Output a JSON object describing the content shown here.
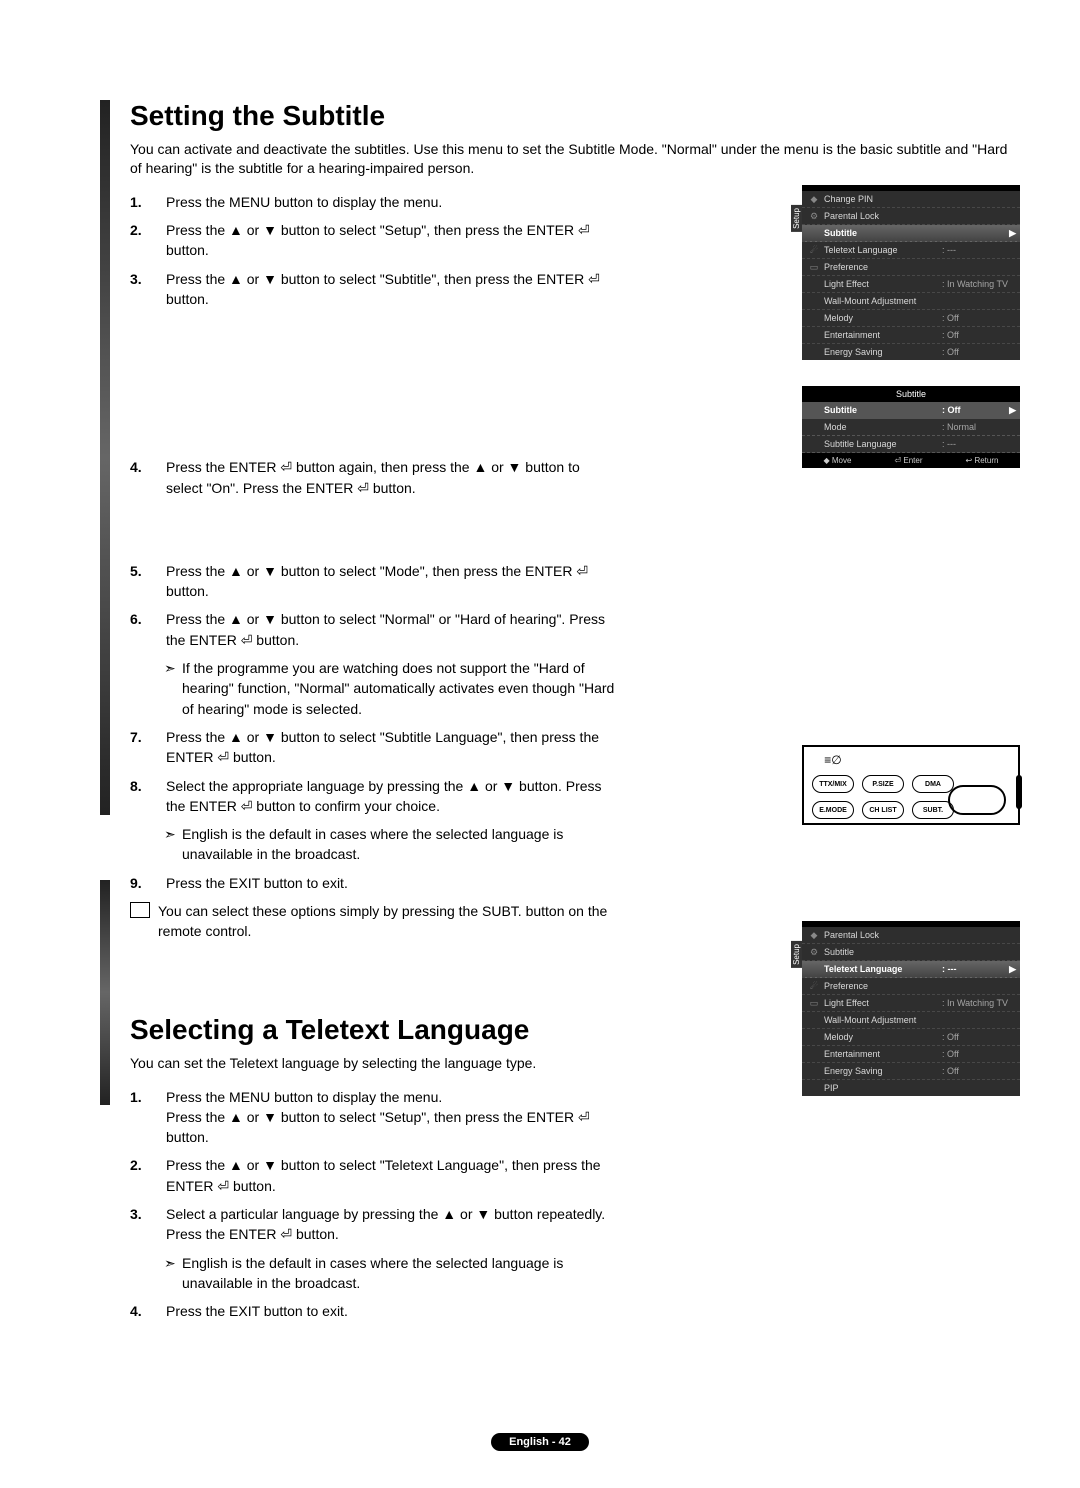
{
  "section1": {
    "title": "Setting the Subtitle",
    "intro": "You can activate and deactivate the subtitles. Use this menu to set the Subtitle Mode. \"Normal\" under the menu is the basic subtitle and \"Hard of hearing\" is the subtitle for a hearing-impaired person.",
    "s1": "Press the MENU button to display the menu.",
    "s2": "Press the ▲ or ▼ button to select \"Setup\", then press the ENTER ⏎ button.",
    "s3": "Press the ▲ or ▼ button to select \"Subtitle\", then press the ENTER ⏎ button.",
    "s4": "Press the ENTER ⏎ button again, then press the ▲ or ▼ button to select \"On\". Press the ENTER ⏎ button.",
    "s5": "Press the ▲ or ▼ button to select \"Mode\", then press the ENTER ⏎ button.",
    "s6": "Press the ▲ or ▼ button to select \"Normal\" or \"Hard of hearing\". Press the ENTER ⏎ button.",
    "s6sub": "If the programme you are watching does not support the \"Hard of hearing\" function, \"Normal\" automatically activates even though \"Hard of hearing\" mode is selected.",
    "s7": "Press the ▲ or ▼ button to select \"Subtitle Language\", then press the ENTER ⏎ button.",
    "s8": "Select the appropriate language by pressing the ▲ or ▼ button. Press the ENTER ⏎ button to confirm your choice.",
    "s8sub": "English is the default in cases where the selected language is unavailable in the broadcast.",
    "s9": "Press the EXIT button to exit.",
    "note": "You can select these options simply by pressing the SUBT. button on the remote control."
  },
  "section2": {
    "title": "Selecting a Teletext Language",
    "intro": "You can set the Teletext language by selecting the language type.",
    "s1a": "Press the MENU button to display the menu.",
    "s1b": "Press the ▲ or ▼ button to select \"Setup\", then press the ENTER ⏎ button.",
    "s2": "Press the ▲ or ▼ button to select \"Teletext Language\", then press the ENTER ⏎ button.",
    "s3": "Select a particular language by pressing the ▲ or ▼ button repeatedly. Press the ENTER ⏎ button.",
    "s3sub": "English is the default in cases where the selected language is unavailable in the broadcast.",
    "s4": "Press the EXIT button to exit."
  },
  "osd1": {
    "tab": "Setup",
    "items": [
      {
        "k": "Change PIN",
        "v": ""
      },
      {
        "k": "Parental Lock",
        "v": ""
      },
      {
        "k": "Subtitle",
        "v": "",
        "hi": true,
        "arr": "▶"
      },
      {
        "k": "Teletext Language",
        "v": ": ---"
      },
      {
        "k": "Preference",
        "v": ""
      },
      {
        "k": "Light Effect",
        "v": ": In Watching TV"
      },
      {
        "k": "Wall-Mount Adjustment",
        "v": ""
      },
      {
        "k": "Melody",
        "v": ": Off"
      },
      {
        "k": "Entertainment",
        "v": ": Off"
      },
      {
        "k": "Energy Saving",
        "v": ": Off"
      }
    ]
  },
  "osd2": {
    "title": "Subtitle",
    "rows": [
      {
        "k": "Subtitle",
        "v": ": Off",
        "hi": true,
        "arr": "▶"
      },
      {
        "k": "Mode",
        "v": ": Normal"
      },
      {
        "k": "Subtitle Language",
        "v": ": ---"
      }
    ],
    "foot": {
      "a": "◆ Move",
      "b": "⏎ Enter",
      "c": "↩ Return"
    }
  },
  "osd3": {
    "tab": "Setup",
    "items": [
      {
        "k": "Parental Lock",
        "v": ""
      },
      {
        "k": "Subtitle",
        "v": ""
      },
      {
        "k": "Teletext Language",
        "v": ": ---",
        "hi": true,
        "arr": "▶"
      },
      {
        "k": "Preference",
        "v": ""
      },
      {
        "k": "Light Effect",
        "v": ": In Watching TV"
      },
      {
        "k": "Wall-Mount Adjustment",
        "v": ""
      },
      {
        "k": "Melody",
        "v": ": Off"
      },
      {
        "k": "Entertainment",
        "v": ": Off"
      },
      {
        "k": "Energy Saving",
        "v": ": Off"
      },
      {
        "k": "PIP",
        "v": ""
      }
    ]
  },
  "remote": {
    "b1": "TTX/MIX",
    "b2": "P.SIZE",
    "b3": "DMA",
    "b4": "E.MODE",
    "b5": "CH LIST",
    "b6": "SUBT."
  },
  "footer": "English - 42"
}
